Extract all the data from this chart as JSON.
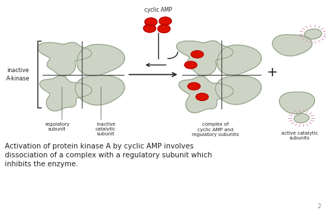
{
  "bg_color": "#ffffff",
  "shape_color": "#cdd4c5",
  "shape_edge_color": "#8a9a80",
  "red_color": "#dd1100",
  "pink_color": "#d899b8",
  "arrow_color": "#222222",
  "text_color": "#222222",
  "title_text": "Activation of protein kinase A by cyclic AMP involves\ndissociation of a complex with a regulatory subunit which\ninhibits the enzyme.",
  "label_inactive_akinase": "inactive\nA-kinase",
  "label_reg_sub": "regulatory\nsubunit",
  "label_inact_cat": "inactive\ncatalytic\nsubunit",
  "label_cyclic_amp": "cyclic AMP",
  "label_complex": "complex of\ncyclic AMP and\nregulatory subunits",
  "label_active_cat": "active catalytic\nsubunits",
  "page_num": "2",
  "fig_width": 4.74,
  "fig_height": 3.1,
  "dpi": 100
}
